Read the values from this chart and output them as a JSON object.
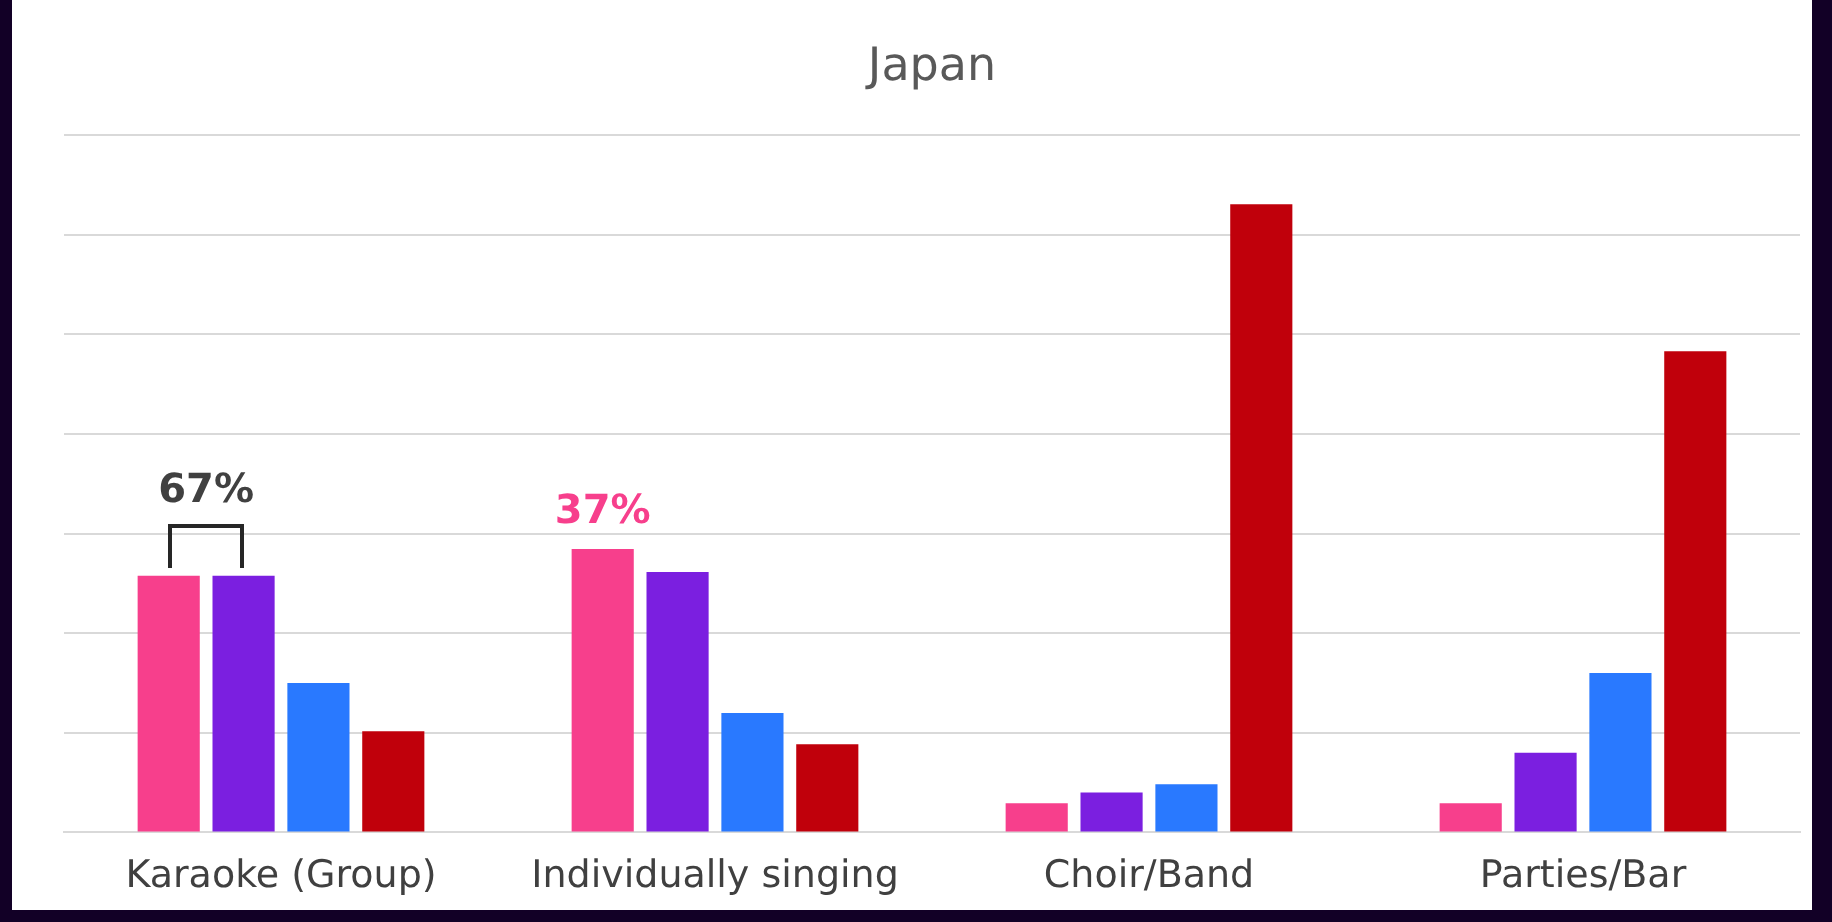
{
  "chart_data": {
    "type": "bar",
    "title": "Japan",
    "categories": [
      "Karaoke (Group)",
      "Individually singing",
      "Choir/Band",
      "Parties/Bar"
    ],
    "series": [
      {
        "color": "#f73f8c",
        "values": [
          33.5,
          37,
          3.8,
          3.8
        ],
        "value_labels": [
          null,
          "37%",
          null,
          null
        ]
      },
      {
        "color": "#7b1fe0",
        "values": [
          33.5,
          34,
          5.2,
          10.4
        ]
      },
      {
        "color": "#2979ff",
        "values": [
          19.5,
          15.6,
          6.3,
          20.8
        ]
      },
      {
        "color": "#c0000b",
        "values": [
          13.2,
          11.5,
          82,
          62.8
        ]
      }
    ],
    "ylim": [
      0,
      91
    ],
    "yticks": [
      {
        "value": 0,
        "label": null
      },
      {
        "value": 13,
        "label": null
      },
      {
        "value": 26,
        "label": null
      },
      {
        "value": 39,
        "label": null
      },
      {
        "value": 52,
        "label": null
      },
      {
        "value": 65,
        "label": null
      },
      {
        "value": 78,
        "label": null
      },
      {
        "value": 91,
        "label": null
      }
    ],
    "grid": "y",
    "tick_labels": "x",
    "legend": false,
    "annotations": [
      {
        "text": "67%",
        "x": "Karaoke (Group)",
        "y": 33.5
      }
    ]
  }
}
